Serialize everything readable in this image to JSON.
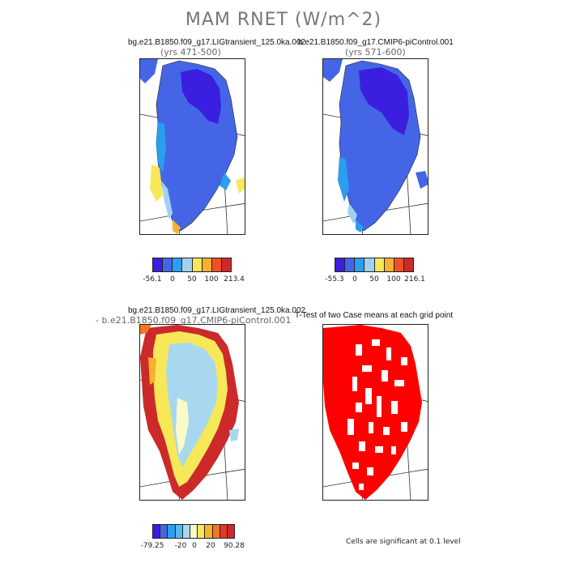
{
  "title": "MAM RNET (W/m^2)",
  "panels": [
    {
      "id": "case1",
      "case": "bg.e21.B1850.f09_g17.LIGtransient_125.0ka.002",
      "years": "(yrs 471-500)",
      "colorbar": {
        "colors": [
          "#3a1fe0",
          "#4466e6",
          "#2a9ef0",
          "#9fd2ef",
          "#f7e85a",
          "#f8b030",
          "#f05028",
          "#cc2a2a"
        ],
        "labels": [
          "-56.1",
          "0",
          "50",
          "100",
          "213.4"
        ]
      }
    },
    {
      "id": "case2",
      "case": "b.e21.B1850.f09_g17.CMIP6-piControl.001",
      "years": "(yrs 571-600)",
      "colorbar": {
        "colors": [
          "#3a1fe0",
          "#4466e6",
          "#2a9ef0",
          "#9fd2ef",
          "#f7e85a",
          "#f8b030",
          "#f05028",
          "#cc2a2a"
        ],
        "labels": [
          "-55.3",
          "0",
          "50",
          "100",
          "216.1"
        ]
      }
    },
    {
      "id": "diff",
      "case": "bg.e21.B1850.f09_g17.LIGtransient_125.0ka.002",
      "years": "- b.e21.B1850.f09_g17.CMIP6-piControl.001",
      "colorbar": {
        "colors": [
          "#3a1fe0",
          "#4466e6",
          "#2a9ef0",
          "#56b8ee",
          "#a8d8f0",
          "#fafac8",
          "#f7e85a",
          "#f8b030",
          "#f07828",
          "#e03a26",
          "#cc2a2a"
        ],
        "labels": [
          "-79.25",
          "-20",
          "0",
          "20",
          "90.28"
        ]
      }
    },
    {
      "id": "ttest",
      "case": "T-Test of two Case means at each grid point",
      "note": "Cells are significant at 0.1 level"
    }
  ],
  "colors": {
    "deep_blue": "#3a1fe0",
    "blue": "#4466e6",
    "light_blue": "#a8d8f0",
    "yellow": "#f7e85a",
    "red": "#cc2a2a",
    "significant_red": "#ff0000"
  }
}
